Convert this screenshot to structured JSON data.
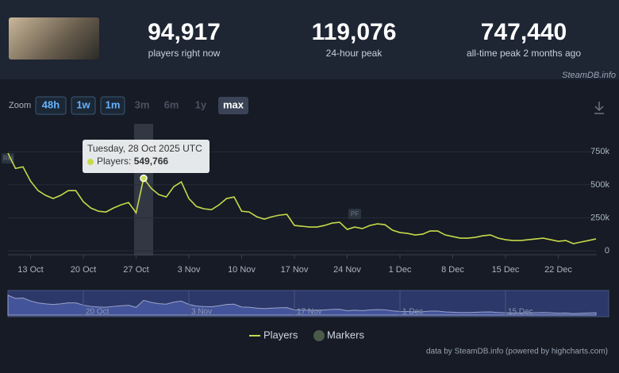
{
  "header": {
    "stats": [
      {
        "value": "94,917",
        "label": "players right now"
      },
      {
        "value": "119,076",
        "label": "24-hour peak"
      },
      {
        "value": "747,440",
        "label": "all-time peak 2 months ago"
      }
    ],
    "watermark": "SteamDB.info"
  },
  "zoom": {
    "label": "Zoom",
    "options": [
      "48h",
      "1w",
      "1m",
      "3m",
      "6m",
      "1y",
      "max"
    ]
  },
  "chart_data": {
    "type": "line",
    "x": [
      "10 Oct",
      "11 Oct",
      "12 Oct",
      "13 Oct",
      "14 Oct",
      "15 Oct",
      "16 Oct",
      "17 Oct",
      "18 Oct",
      "19 Oct",
      "20 Oct",
      "21 Oct",
      "22 Oct",
      "23 Oct",
      "24 Oct",
      "25 Oct",
      "26 Oct",
      "27 Oct",
      "28 Oct",
      "29 Oct",
      "30 Oct",
      "31 Oct",
      "1 Nov",
      "2 Nov",
      "3 Nov",
      "4 Nov",
      "5 Nov",
      "6 Nov",
      "7 Nov",
      "8 Nov",
      "9 Nov",
      "10 Nov",
      "11 Nov",
      "12 Nov",
      "13 Nov",
      "14 Nov",
      "15 Nov",
      "16 Nov",
      "17 Nov",
      "18 Nov",
      "19 Nov",
      "20 Nov",
      "21 Nov",
      "22 Nov",
      "23 Nov",
      "24 Nov",
      "25 Nov",
      "26 Nov",
      "27 Nov",
      "28 Nov",
      "29 Nov",
      "30 Nov",
      "1 Dec",
      "2 Dec",
      "3 Dec",
      "4 Dec",
      "5 Dec",
      "6 Dec",
      "7 Dec",
      "8 Dec",
      "9 Dec",
      "10 Dec",
      "11 Dec",
      "12 Dec",
      "13 Dec",
      "14 Dec",
      "15 Dec",
      "16 Dec",
      "17 Dec",
      "18 Dec",
      "19 Dec",
      "20 Dec",
      "21 Dec",
      "22 Dec",
      "23 Dec",
      "24 Dec",
      "25 Dec",
      "26 Dec",
      "27 Dec"
    ],
    "series": [
      {
        "name": "Players",
        "color": "#c6d94a",
        "values": [
          740000,
          624000,
          636000,
          528000,
          456000,
          420000,
          396000,
          420000,
          456000,
          456000,
          372000,
          324000,
          300000,
          294000,
          324000,
          348000,
          366000,
          288000,
          549766,
          474000,
          426000,
          408000,
          486000,
          522000,
          396000,
          336000,
          318000,
          312000,
          348000,
          396000,
          408000,
          300000,
          294000,
          258000,
          240000,
          258000,
          270000,
          276000,
          192000,
          186000,
          180000,
          180000,
          192000,
          210000,
          216000,
          162000,
          180000,
          168000,
          192000,
          204000,
          198000,
          156000,
          138000,
          132000,
          120000,
          126000,
          150000,
          150000,
          120000,
          108000,
          96000,
          96000,
          102000,
          114000,
          120000,
          96000,
          84000,
          78000,
          78000,
          84000,
          90000,
          96000,
          84000,
          72000,
          78000,
          54000,
          66000,
          78000,
          90000
        ]
      }
    ],
    "markers_legend": {
      "name": "Markers",
      "color": "#4a5a48"
    },
    "markers": [
      {
        "x": "10 Oct",
        "label": "Rel"
      },
      {
        "x": "25 Nov",
        "label": "PF"
      }
    ],
    "xticks": [
      "13 Oct",
      "20 Oct",
      "27 Oct",
      "3 Nov",
      "10 Nov",
      "17 Nov",
      "24 Nov",
      "1 Dec",
      "8 Dec",
      "15 Dec",
      "22 Dec"
    ],
    "ylim": [
      0,
      800000
    ],
    "yticks": [
      0,
      {
        "value": 250000,
        "label": "250k"
      },
      {
        "value": 500000,
        "label": "500k"
      },
      {
        "value": 750000,
        "label": "750k"
      }
    ],
    "grid": true,
    "navigator_xticks": [
      "20 Oct",
      "3 Nov",
      "17 Nov",
      "1 Dec",
      "15 Dec"
    ],
    "tooltip": {
      "title": "Tuesday, 28 Oct 2025 UTC",
      "series_label": "Players:",
      "value_label": "549,766"
    },
    "credits": "data by SteamDB.info (powered by highcharts.com)"
  }
}
